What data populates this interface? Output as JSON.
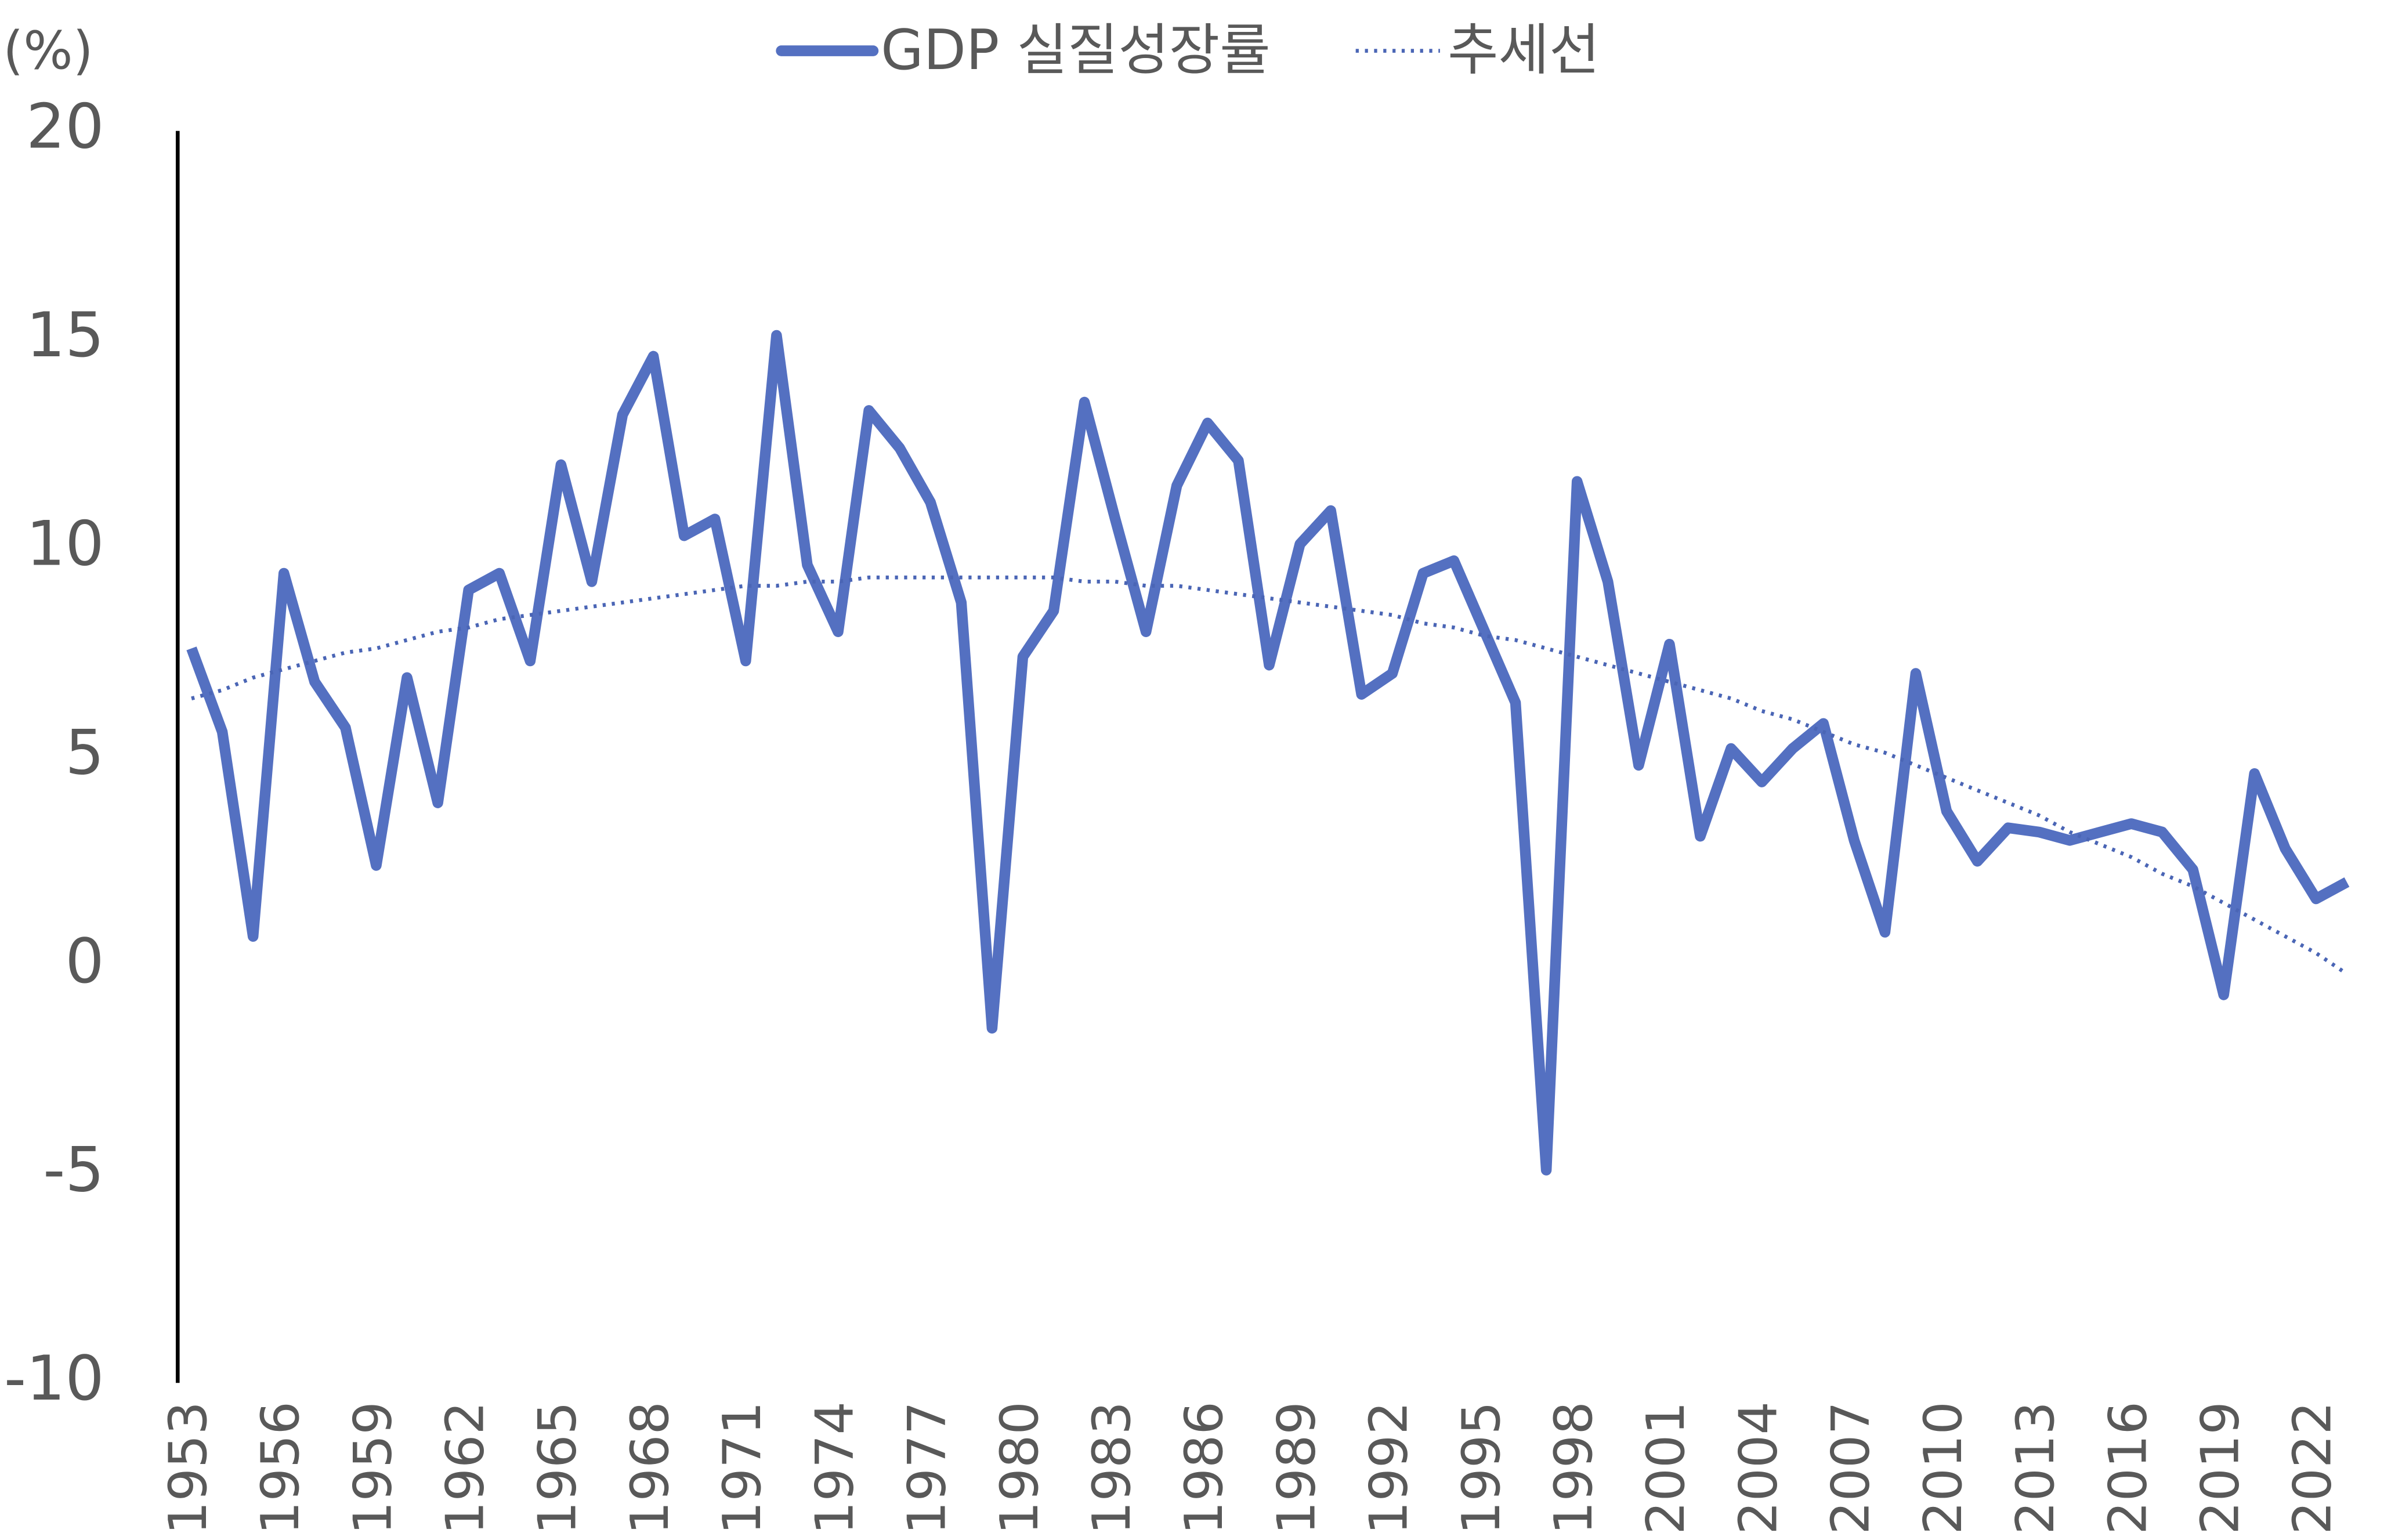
{
  "chart_data": {
    "type": "line",
    "y_label": "(%)",
    "categories": [
      "1953",
      null,
      null,
      "1956",
      null,
      null,
      "1959",
      null,
      null,
      "1962",
      null,
      null,
      "1965",
      null,
      null,
      "1968",
      null,
      null,
      "1971",
      null,
      null,
      "1974",
      null,
      null,
      "1977",
      null,
      null,
      "1980",
      null,
      null,
      "1983",
      null,
      null,
      "1986",
      null,
      null,
      "1989",
      null,
      null,
      "1992",
      null,
      null,
      "1995",
      null,
      null,
      "1998",
      null,
      null,
      "2001",
      null,
      null,
      "2004",
      null,
      null,
      "2007",
      null,
      null,
      "2010",
      null,
      null,
      "2013",
      null,
      null,
      "2016",
      null,
      null,
      "2019",
      null,
      null,
      "2022",
      null
    ],
    "series": [
      {
        "name": "GDP 실질성장률",
        "color": "#5470c1",
        "style": "solid",
        "values": [
          7.6,
          5.6,
          0.7,
          9.4,
          6.8,
          5.7,
          2.4,
          6.9,
          3.9,
          9.0,
          9.4,
          7.3,
          12.0,
          9.2,
          13.2,
          14.6,
          10.3,
          10.7,
          7.3,
          15.1,
          9.6,
          8.0,
          13.3,
          12.4,
          11.1,
          8.7,
          -1.5,
          7.4,
          8.5,
          13.5,
          10.7,
          8.0,
          11.5,
          13.0,
          12.1,
          7.2,
          10.1,
          10.9,
          6.5,
          7.0,
          9.4,
          9.7,
          8.0,
          6.3,
          -4.9,
          11.6,
          9.2,
          4.8,
          7.7,
          3.1,
          5.2,
          4.4,
          5.2,
          5.8,
          3.0,
          0.8,
          7.0,
          3.7,
          2.5,
          3.3,
          3.2,
          3.0,
          3.2,
          3.4,
          3.2,
          2.3,
          -0.7,
          4.6,
          2.8,
          1.6,
          2.0
        ]
      },
      {
        "name": "추세선",
        "color": "#4a65b5",
        "style": "dotted",
        "values": [
          6.4,
          6.6,
          6.9,
          7.1,
          7.3,
          7.5,
          7.6,
          7.8,
          8.0,
          8.1,
          8.3,
          8.4,
          8.5,
          8.6,
          8.7,
          8.8,
          8.9,
          9.0,
          9.1,
          9.1,
          9.2,
          9.2,
          9.3,
          9.3,
          9.3,
          9.3,
          9.3,
          9.3,
          9.3,
          9.2,
          9.2,
          9.1,
          9.1,
          9.0,
          8.9,
          8.8,
          8.7,
          8.6,
          8.5,
          8.4,
          8.2,
          8.1,
          7.9,
          7.8,
          7.6,
          7.4,
          7.2,
          7.0,
          6.8,
          6.6,
          6.4,
          6.1,
          5.9,
          5.6,
          5.3,
          5.1,
          4.8,
          4.5,
          4.2,
          3.9,
          3.6,
          3.2,
          2.9,
          2.6,
          2.2,
          1.9,
          1.5,
          1.1,
          0.7,
          0.3,
          -0.2
        ]
      }
    ],
    "ylim": [
      -10,
      20
    ],
    "yticks": [
      -10,
      -5,
      0,
      5,
      10,
      15,
      20
    ],
    "grid": false,
    "legend": "top"
  }
}
